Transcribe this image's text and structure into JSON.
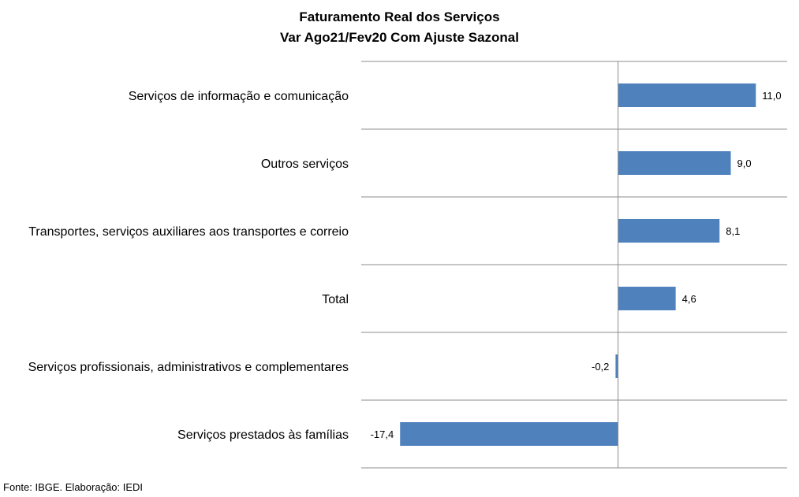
{
  "chart_data": {
    "type": "bar",
    "orientation": "horizontal",
    "title": "Faturamento  Real dos Serviços",
    "subtitle": "Var Ago21/Fev20 Com Ajuste Sazonal",
    "categories": [
      "Serviços de informação e comunicação",
      "Outros serviços",
      "Transportes, serviços auxiliares aos transportes e correio",
      "Total",
      "Serviços profissionais, administrativos e complementares",
      "Serviços prestados às famílias"
    ],
    "values": [
      11.0,
      9.0,
      8.1,
      4.6,
      -0.2,
      -17.4
    ],
    "value_labels": [
      "11,0",
      "9,0",
      "8,1",
      "4,6",
      "-0,2",
      "-17,4"
    ],
    "xlim": [
      -20.5,
      13.5
    ],
    "grid": true,
    "bar_color": "#4F81BD",
    "source": "Fonte: IBGE. Elaboração: IEDI"
  }
}
